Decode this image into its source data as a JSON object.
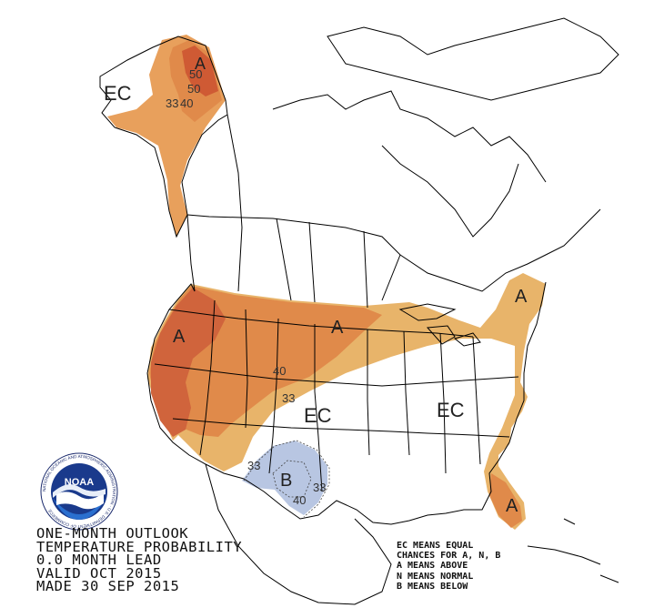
{
  "outlook": {
    "title_lines": [
      "ONE-MONTH OUTLOOK",
      "TEMPERATURE PROBABILITY",
      "0.0 MONTH LEAD",
      "VALID OCT 2015",
      "MADE 30 SEP 2015"
    ]
  },
  "legend": {
    "lines": [
      "EC MEANS EQUAL",
      "CHANCES FOR A, N, B",
      "A MEANS ABOVE",
      "N MEANS NORMAL",
      "B MEANS BELOW"
    ]
  },
  "logo": {
    "center_text": "NOAA",
    "ring_text": "NATIONAL OCEANIC AND ATMOSPHERIC ADMINISTRATION · U.S. DEPARTMENT OF COMMERCE"
  },
  "map_labels": {
    "ec_alaska": "EC",
    "a_alaska": "A",
    "a_west": "A",
    "a_plains": "A",
    "a_northeast": "A",
    "a_florida": "A",
    "ec_central": "EC",
    "ec_east": "EC",
    "b_southwest": "B"
  },
  "contour_labels": {
    "ak_50a": "50",
    "ak_50b": "50",
    "ak_40": "40",
    "ak_33": "33",
    "west_40": "40",
    "west_33": "33",
    "sw_33a": "33",
    "sw_33b": "33",
    "sw_40": "40"
  },
  "colors": {
    "above_33": "#e8b46a",
    "above_40": "#e08a4a",
    "above_50": "#d0603a",
    "above_60": "#b83a28",
    "below_33": "#b8c6e2",
    "outline": "#000000"
  }
}
